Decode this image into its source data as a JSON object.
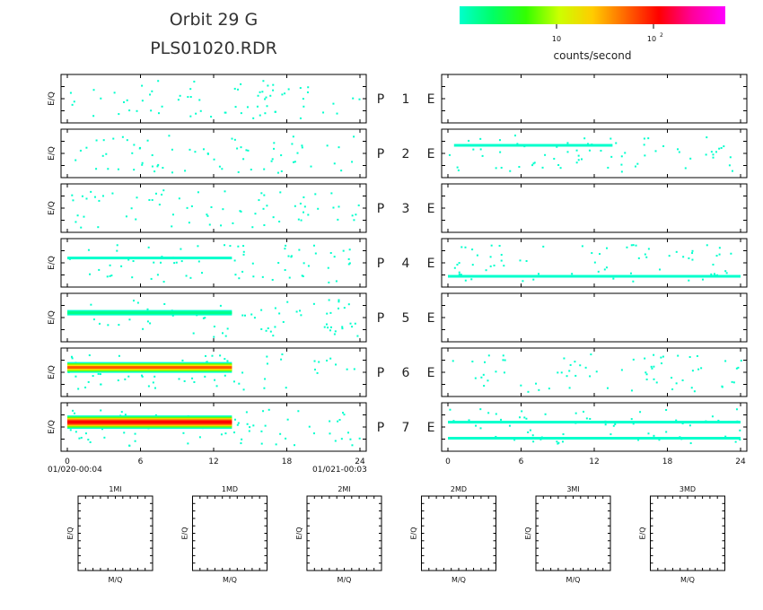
{
  "title": {
    "line1": "Orbit 29 G",
    "line2": "PLS01020.RDR"
  },
  "colorbar": {
    "label": "counts/second",
    "tick1": "10",
    "tick2_base": "10",
    "tick2_exp": "2",
    "colors": [
      "#00ffcc",
      "#00ff66",
      "#33ff00",
      "#ccff00",
      "#ffcc00",
      "#ff6600",
      "#ff0000",
      "#ff0099",
      "#ff00ff"
    ],
    "scale": "log"
  },
  "axes": {
    "ylabel": "E/Q",
    "xticks_left": [
      "0",
      "6",
      "12",
      "18",
      "24"
    ],
    "xticks_right": [
      "0",
      "6",
      "12",
      "18",
      "24"
    ],
    "start_label": "01/020-00:04",
    "end_label": "01/021-00:03"
  },
  "panel_labels": [
    {
      "p": "P",
      "n": "1",
      "e": "E"
    },
    {
      "p": "P",
      "n": "2",
      "e": "E"
    },
    {
      "p": "P",
      "n": "3",
      "e": "E"
    },
    {
      "p": "P",
      "n": "4",
      "e": "E"
    },
    {
      "p": "P",
      "n": "5",
      "e": "E"
    },
    {
      "p": "P",
      "n": "6",
      "e": "E"
    },
    {
      "p": "P",
      "n": "7",
      "e": "E"
    }
  ],
  "small_plots": [
    {
      "title": "1MI",
      "xlabel": "M/Q",
      "ylabel": "E/Q"
    },
    {
      "title": "1MD",
      "xlabel": "M/Q",
      "ylabel": "E/Q"
    },
    {
      "title": "2MI",
      "xlabel": "M/Q",
      "ylabel": "E/Q"
    },
    {
      "title": "2MD",
      "xlabel": "M/Q",
      "ylabel": "E/Q"
    },
    {
      "title": "3MI",
      "xlabel": "M/Q",
      "ylabel": "E/Q"
    },
    {
      "title": "3MD",
      "xlabel": "M/Q",
      "ylabel": "E/Q"
    }
  ],
  "chart_data": {
    "type": "heatmap",
    "x_range_hours": [
      0,
      24
    ],
    "x_ticks": [
      0,
      6,
      12,
      18,
      24
    ],
    "z_scale": "log",
    "left_panels": [
      {
        "name": "P 1",
        "density": "sparse",
        "bands": []
      },
      {
        "name": "P 2",
        "density": "sparse",
        "bands": []
      },
      {
        "name": "P 3",
        "density": "sparse",
        "bands": []
      },
      {
        "name": "P 4",
        "density": "sparse",
        "bands": [
          {
            "x_start": 0,
            "x_end": 13.5,
            "level": "low"
          }
        ]
      },
      {
        "name": "P 5",
        "density": "sparse",
        "bands": [
          {
            "x_start": 0,
            "x_end": 13.5,
            "level": "medium"
          }
        ]
      },
      {
        "name": "P 6",
        "density": "sparse",
        "bands": [
          {
            "x_start": 0,
            "x_end": 13.5,
            "level": "high"
          }
        ]
      },
      {
        "name": "P 7",
        "density": "sparse",
        "bands": [
          {
            "x_start": 0,
            "x_end": 13.5,
            "level": "very high"
          }
        ]
      }
    ],
    "right_panels": [
      {
        "name": "P 1 E",
        "density": "empty",
        "bands": []
      },
      {
        "name": "P 2 E",
        "density": "sparse",
        "bands": [
          {
            "x_start": 0.5,
            "x_end": 13.5,
            "level": "low"
          }
        ]
      },
      {
        "name": "P 3 E",
        "density": "empty",
        "bands": []
      },
      {
        "name": "P 4 E",
        "density": "sparse",
        "bands": [
          {
            "x_start": 0,
            "x_end": 24,
            "level": "low"
          }
        ]
      },
      {
        "name": "P 5 E",
        "density": "empty",
        "bands": []
      },
      {
        "name": "P 6 E",
        "density": "sparse",
        "bands": []
      },
      {
        "name": "P 7 E",
        "density": "sparse",
        "bands": [
          {
            "x_start": 0,
            "x_end": 24,
            "level": "low"
          }
        ]
      }
    ]
  }
}
